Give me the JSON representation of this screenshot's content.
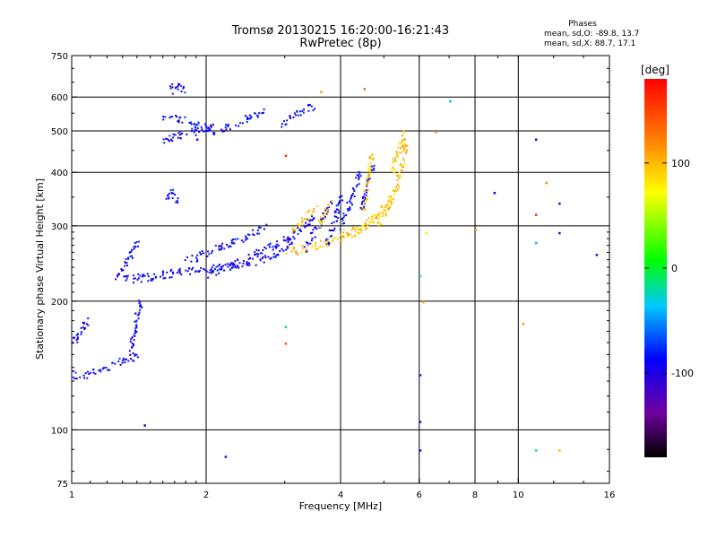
{
  "header": {
    "title_line1": "Tromsø 20130215 16:20:00-16:21:43",
    "title_line2": "RwPretec (8p)",
    "phase_title": "Phases",
    "phase_o": "mean, sd,O: -89.8, 13.7",
    "phase_x": "mean, sd,X:  88.7, 17.1"
  },
  "colorbar": {
    "unit_label": "[deg]",
    "range": [
      -180,
      180
    ],
    "ticks": [
      {
        "v": 100,
        "label": "100"
      },
      {
        "v": 0,
        "label": "0"
      },
      {
        "v": -100,
        "label": "-100"
      }
    ]
  },
  "chart_data": {
    "type": "scatter",
    "title": "Tromsø 20130215 16:20:00-16:21:43",
    "subtitle": "RwPretec (8p)",
    "xlabel": "Frequency [MHz]",
    "ylabel": "Stationary phase Virtual Height [km]",
    "x_scale": "log",
    "y_scale": "log",
    "xlim": [
      1,
      16
    ],
    "ylim": [
      75,
      750
    ],
    "grid": true,
    "x_ticks": [
      {
        "v": 1,
        "label": "1"
      },
      {
        "v": 2,
        "label": "2"
      },
      {
        "v": 4,
        "label": "4"
      },
      {
        "v": 6,
        "label": "6"
      },
      {
        "v": 8,
        "label": "8"
      },
      {
        "v": 10,
        "label": "10"
      },
      {
        "v": 16,
        "label": "16"
      }
    ],
    "x_major_grid": [
      2,
      4,
      6,
      8,
      10
    ],
    "y_ticks": [
      {
        "v": 75,
        "label": "75"
      },
      {
        "v": 100,
        "label": "100"
      },
      {
        "v": 200,
        "label": "200"
      },
      {
        "v": 300,
        "label": "300"
      },
      {
        "v": 400,
        "label": "400"
      },
      {
        "v": 500,
        "label": "500"
      },
      {
        "v": 600,
        "label": "600"
      },
      {
        "v": 750,
        "label": "750"
      }
    ],
    "y_major_grid": [
      100,
      200,
      300,
      400,
      500,
      600
    ],
    "series": [
      {
        "name": "O",
        "color_phase": -90,
        "traces": [
          {
            "x": [
              1.0,
              1.05,
              1.1,
              1.15,
              1.2,
              1.25,
              1.3,
              1.35,
              1.4
            ],
            "y": [
              135,
              135,
              136,
              138,
              140,
              143,
              145,
              148,
              150
            ]
          },
          {
            "x": [
              1.35,
              1.36,
              1.38,
              1.39,
              1.4,
              1.41,
              1.42
            ],
            "y": [
              150,
              160,
              170,
              180,
              190,
              195,
              200
            ]
          },
          {
            "x": [
              1.0,
              1.02,
              1.04,
              1.06,
              1.08
            ],
            "y": [
              160,
              165,
              170,
              175,
              180
            ]
          },
          {
            "x": [
              1.3,
              1.35,
              1.4,
              1.45,
              1.5,
              1.55,
              1.6,
              1.7,
              1.8,
              1.9,
              2.0,
              2.2,
              2.4,
              2.6,
              2.8,
              3.0
            ],
            "y": [
              225,
              226,
              227,
              228,
              229,
              230,
              232,
              234,
              236,
              238,
              240,
              242,
              246,
              250,
              255,
              262
            ]
          },
          {
            "x": [
              1.25,
              1.3,
              1.35,
              1.4
            ],
            "y": [
              228,
              240,
              260,
              280
            ]
          },
          {
            "x": [
              1.8,
              1.9,
              2.0,
              2.2,
              2.4,
              2.6,
              2.7
            ],
            "y": [
              250,
              255,
              262,
              272,
              282,
              292,
              300
            ]
          },
          {
            "x": [
              2.0,
              2.2,
              2.4,
              2.6,
              2.8,
              3.0,
              3.2
            ],
            "y": [
              230,
              240,
              250,
              260,
              270,
              280,
              292
            ]
          },
          {
            "x": [
              3.0,
              3.1,
              3.2,
              3.3,
              3.4,
              3.5
            ],
            "y": [
              270,
              280,
              290,
              300,
              310,
              320
            ]
          },
          {
            "x": [
              3.3,
              3.4,
              3.5,
              3.6,
              3.7,
              3.8
            ],
            "y": [
              265,
              280,
              295,
              310,
              325,
              340
            ]
          },
          {
            "x": [
              3.7,
              3.8,
              3.9,
              4.0
            ],
            "y": [
              270,
              290,
              320,
              360
            ]
          },
          {
            "x": [
              4.0,
              4.1,
              4.2,
              4.3,
              4.4
            ],
            "y": [
              300,
              320,
              345,
              370,
              400
            ]
          },
          {
            "x": [
              4.4,
              4.5,
              4.6,
              4.7
            ],
            "y": [
              320,
              350,
              380,
              420
            ]
          },
          {
            "x": [
              1.6,
              1.65,
              1.7,
              1.8,
              1.9,
              2.0,
              2.1
            ],
            "y": [
              470,
              480,
              490,
              495,
              500,
              510,
              520
            ]
          },
          {
            "x": [
              1.6,
              1.7,
              1.8,
              1.9,
              2.0,
              2.1
            ],
            "y": [
              540,
              535,
              530,
              520,
              510,
              500
            ]
          },
          {
            "x": [
              2.1,
              2.3,
              2.5,
              2.7
            ],
            "y": [
              500,
              520,
              540,
              560
            ]
          },
          {
            "x": [
              1.62,
              1.65,
              1.68,
              1.72
            ],
            "y": [
              350,
              360,
              355,
              345
            ]
          },
          {
            "x": [
              1.65,
              1.7,
              1.75,
              1.8
            ],
            "y": [
              620,
              640,
              630,
              610
            ]
          },
          {
            "x": [
              2.9,
              3.1,
              3.3,
              3.5
            ],
            "y": [
              520,
              540,
              560,
              580
            ]
          }
        ]
      },
      {
        "name": "X",
        "color_phase": 95,
        "traces": [
          {
            "x": [
              3.0,
              3.2,
              3.4,
              3.6,
              3.8,
              4.0,
              4.2,
              4.4,
              4.6,
              4.8
            ],
            "y": [
              262,
              264,
              268,
              272,
              276,
              282,
              288,
              296,
              305,
              318
            ]
          },
          {
            "x": [
              4.0,
              4.2,
              4.4,
              4.6,
              4.8,
              5.0,
              5.2
            ],
            "y": [
              290,
              292,
              298,
              306,
              316,
              330,
              350
            ]
          },
          {
            "x": [
              4.8,
              4.9,
              5.0,
              5.1,
              5.2,
              5.3,
              5.4,
              5.5,
              5.6
            ],
            "y": [
              300,
              310,
              322,
              336,
              352,
              372,
              395,
              430,
              480
            ]
          },
          {
            "x": [
              4.5,
              4.55,
              4.6,
              4.65,
              4.7
            ],
            "y": [
              330,
              360,
              390,
              420,
              450
            ]
          },
          {
            "x": [
              5.2,
              5.3,
              5.4,
              5.5
            ],
            "y": [
              400,
              430,
              460,
              500
            ]
          },
          {
            "x": [
              3.1,
              3.2,
              3.3,
              3.4,
              3.5
            ],
            "y": [
              290,
              300,
              310,
              320,
              330
            ]
          },
          {
            "x": [
              3.5,
              3.6,
              3.7,
              3.8
            ],
            "y": [
              300,
              312,
              325,
              340
            ]
          }
        ]
      }
    ],
    "scattered_points": [
      {
        "x": 1.9,
        "y": 480,
        "phase": -120
      },
      {
        "x": 2.2,
        "y": 87,
        "phase": -110
      },
      {
        "x": 1.45,
        "y": 103,
        "phase": -100
      },
      {
        "x": 6.0,
        "y": 105,
        "phase": -110
      },
      {
        "x": 6.0,
        "y": 90,
        "phase": -100
      },
      {
        "x": 6.0,
        "y": 230,
        "phase": -20
      },
      {
        "x": 6.0,
        "y": 135,
        "phase": -110
      },
      {
        "x": 8.0,
        "y": 295,
        "phase": 110
      },
      {
        "x": 8.8,
        "y": 360,
        "phase": -100
      },
      {
        "x": 10.9,
        "y": 480,
        "phase": -110
      },
      {
        "x": 10.9,
        "y": 320,
        "phase": 160
      },
      {
        "x": 10.9,
        "y": 275,
        "phase": -40
      },
      {
        "x": 12.3,
        "y": 340,
        "phase": -110
      },
      {
        "x": 12.3,
        "y": 290,
        "phase": -110
      },
      {
        "x": 12.3,
        "y": 90,
        "phase": 100
      },
      {
        "x": 10.9,
        "y": 90,
        "phase": -20
      },
      {
        "x": 10.2,
        "y": 178,
        "phase": 110
      },
      {
        "x": 14.9,
        "y": 258,
        "phase": -110
      },
      {
        "x": 6.5,
        "y": 500,
        "phase": 130
      },
      {
        "x": 7.0,
        "y": 590,
        "phase": -40
      },
      {
        "x": 3.0,
        "y": 160,
        "phase": 140
      },
      {
        "x": 3.0,
        "y": 175,
        "phase": -10
      },
      {
        "x": 6.1,
        "y": 200,
        "phase": 110
      },
      {
        "x": 6.2,
        "y": 290,
        "phase": 60
      },
      {
        "x": 11.5,
        "y": 380,
        "phase": 120
      },
      {
        "x": 4.5,
        "y": 630,
        "phase": 130
      },
      {
        "x": 3.6,
        "y": 620,
        "phase": 110
      },
      {
        "x": 3.0,
        "y": 440,
        "phase": 160
      }
    ]
  }
}
